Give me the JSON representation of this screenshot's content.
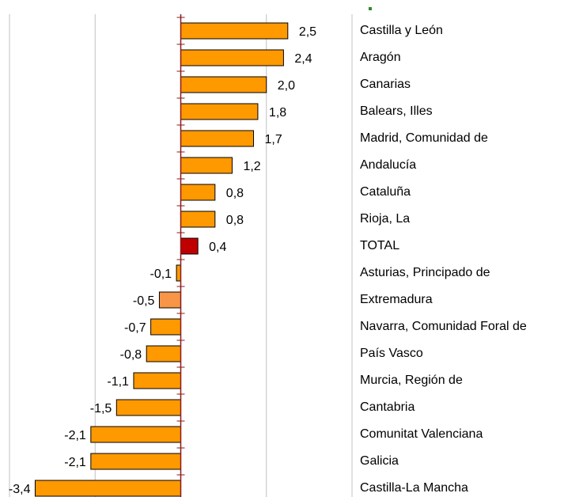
{
  "chart_data": {
    "type": "barh",
    "categories": [
      "Castilla y León",
      "Aragón",
      "Canarias",
      "Balears, Illes",
      "Madrid, Comunidad de",
      "Andalucía",
      "Cataluña",
      "Rioja, La",
      "TOTAL",
      "Asturias, Principado de",
      "Extremadura",
      "Navarra, Comunidad Foral de",
      "País Vasco",
      "Murcia, Región de",
      "Cantabria",
      "Comunitat Valenciana",
      "Galicia",
      "Castilla-La Mancha"
    ],
    "values": [
      2.5,
      2.4,
      2.0,
      1.8,
      1.7,
      1.2,
      0.8,
      0.8,
      0.4,
      -0.1,
      -0.5,
      -0.7,
      -0.8,
      -1.1,
      -1.5,
      -2.1,
      -2.1,
      -3.4
    ],
    "value_labels": [
      "2,5",
      "2,4",
      "2,0",
      "1,8",
      "1,7",
      "1,2",
      "0,8",
      "0,8",
      "0,4",
      "-0,1",
      "-0,5",
      "-0,7",
      "-0,8",
      "-1,1",
      "-1,5",
      "-2,1",
      "-2,1",
      "-3,4"
    ],
    "colors": [
      "#ff9900",
      "#ff9900",
      "#ff9900",
      "#ff9900",
      "#ff9900",
      "#ff9900",
      "#ff9900",
      "#ff9900",
      "#c00000",
      "#ff9900",
      "#f79646",
      "#ff9900",
      "#ff9900",
      "#ff9900",
      "#ff9900",
      "#ff9900",
      "#ff9900",
      "#ff9900"
    ],
    "xlim": [
      -4,
      4
    ],
    "xticks": [
      -4,
      -2,
      0,
      2,
      4
    ],
    "grid": true
  }
}
